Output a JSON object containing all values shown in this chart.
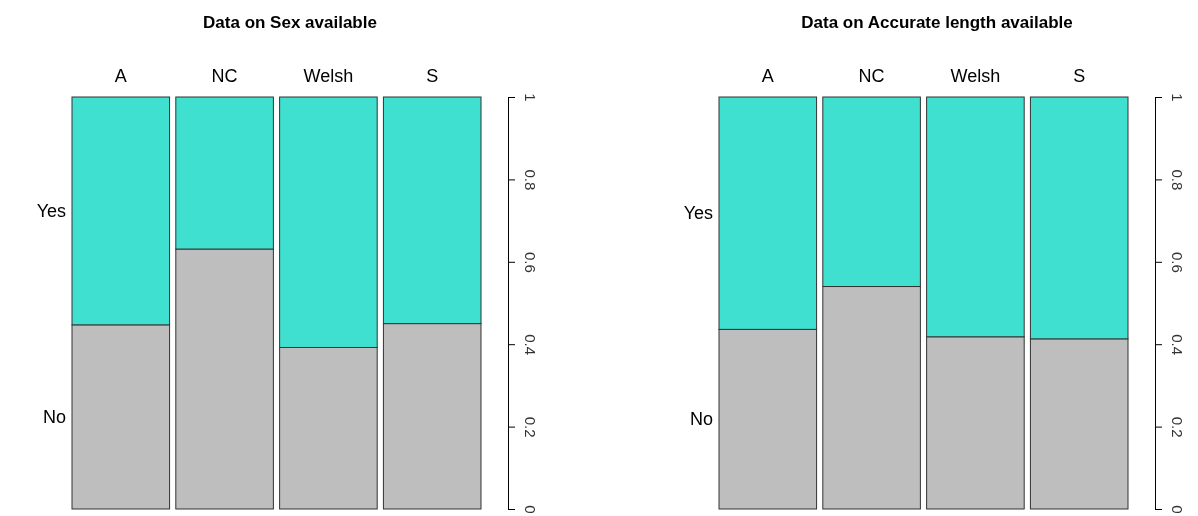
{
  "chart_data": [
    {
      "type": "bar",
      "title": "Data on Sex available",
      "stacked": true,
      "categories": [
        "A",
        "NC",
        "Welsh",
        "S"
      ],
      "ylim": [
        0,
        1
      ],
      "yticks": [
        0,
        0.2,
        0.4,
        0.6,
        0.8,
        1
      ],
      "series": [
        {
          "name": "No",
          "color": "#bebebe",
          "values": [
            0.447,
            0.631,
            0.392,
            0.45
          ]
        },
        {
          "name": "Yes",
          "color": "#40e0d0",
          "values": [
            0.553,
            0.369,
            0.608,
            0.55
          ]
        }
      ]
    },
    {
      "type": "bar",
      "title": "Data on Accurate length available",
      "stacked": true,
      "categories": [
        "A",
        "NC",
        "Welsh",
        "S"
      ],
      "ylim": [
        0,
        1
      ],
      "yticks": [
        0,
        0.2,
        0.4,
        0.6,
        0.8,
        1
      ],
      "series": [
        {
          "name": "No",
          "color": "#bebebe",
          "values": [
            0.436,
            0.54,
            0.418,
            0.413
          ]
        },
        {
          "name": "Yes",
          "color": "#40e0d0",
          "values": [
            0.564,
            0.46,
            0.582,
            0.587
          ]
        }
      ]
    }
  ]
}
